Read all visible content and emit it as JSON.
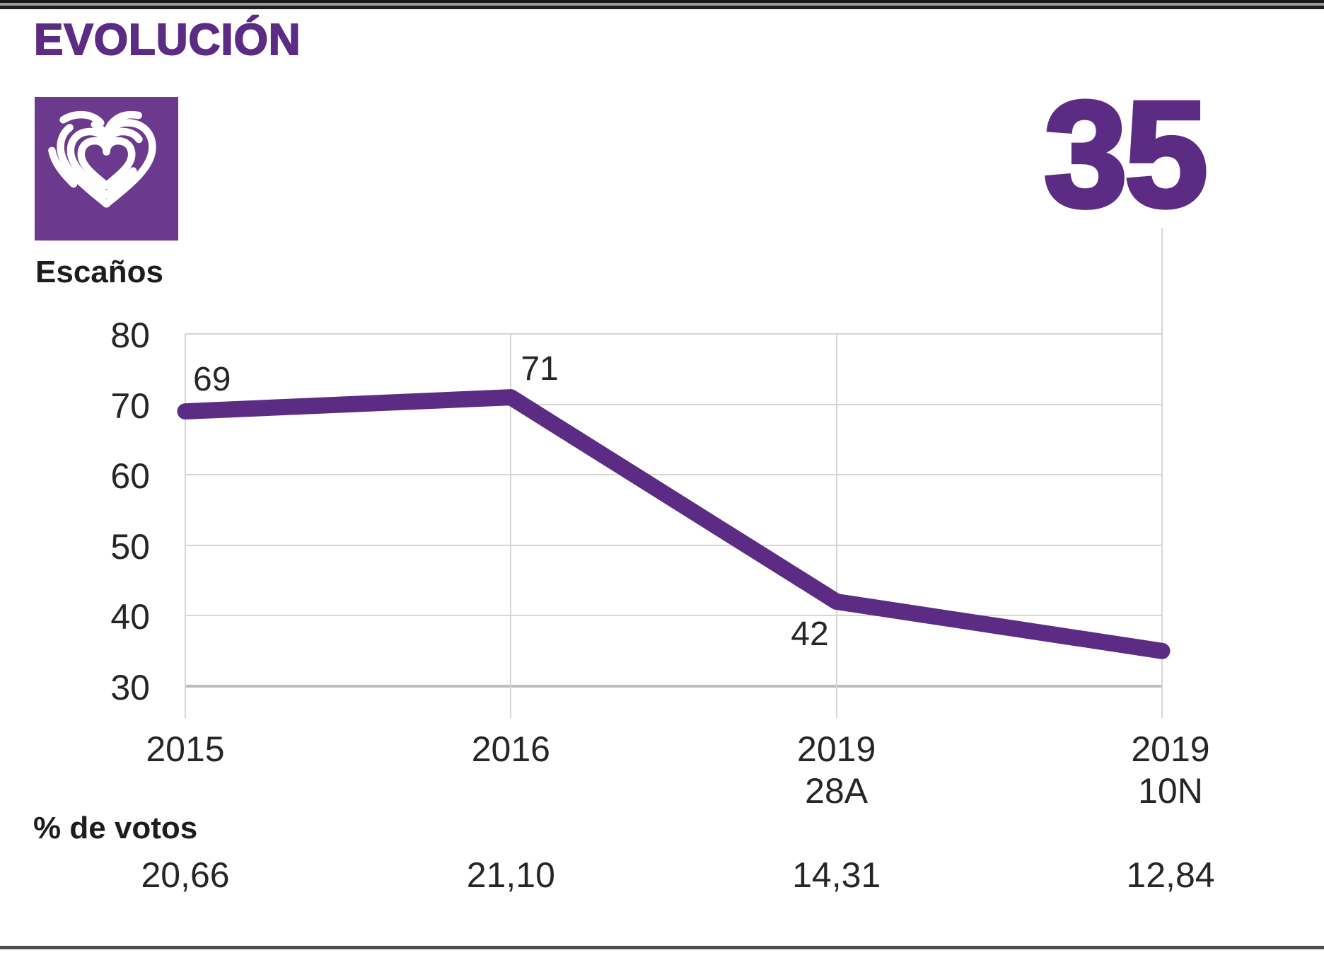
{
  "header": {
    "title": "EVOLUCIÓN"
  },
  "big_number": "35",
  "labels": {
    "seats": "Escaños"
  },
  "logo": {
    "icon": "podemos-heart-icon"
  },
  "chart_data": {
    "type": "line",
    "title": "EVOLUCIÓN",
    "ylabel": "Escaños",
    "categories": [
      "2015",
      "2016",
      "2019 28A",
      "2019 10N"
    ],
    "x_tick_lines": [
      [
        "2015"
      ],
      [
        "2016"
      ],
      [
        "2019",
        "28A"
      ],
      [
        "2019",
        "10N"
      ]
    ],
    "series": [
      {
        "name": "Escaños",
        "values": [
          69,
          71,
          42,
          35
        ]
      }
    ],
    "point_labels": [
      "69",
      "71",
      "42",
      null
    ],
    "highlight_value": "35",
    "yticks": [
      80,
      70,
      60,
      50,
      40,
      30
    ],
    "ylim": [
      30,
      80
    ],
    "grid": true,
    "legend": "none",
    "line_color": "#5c2b83",
    "votes_row": {
      "label": "% de votos",
      "values": [
        "20,66",
        "21,10",
        "14,31",
        "12,84"
      ]
    }
  },
  "colors": {
    "accent_purple": "#5c2b84",
    "logo_background": "#6b3a8e",
    "logo_heart": "#ffffff",
    "text_dark": "#1d1d1b",
    "numeral_gray": "#262626",
    "gridline": "#d6d6d6",
    "axis_line": "#bcbcbc",
    "top_rule": "#1a1a1a",
    "bottom_rule": "#4d4d4d"
  }
}
